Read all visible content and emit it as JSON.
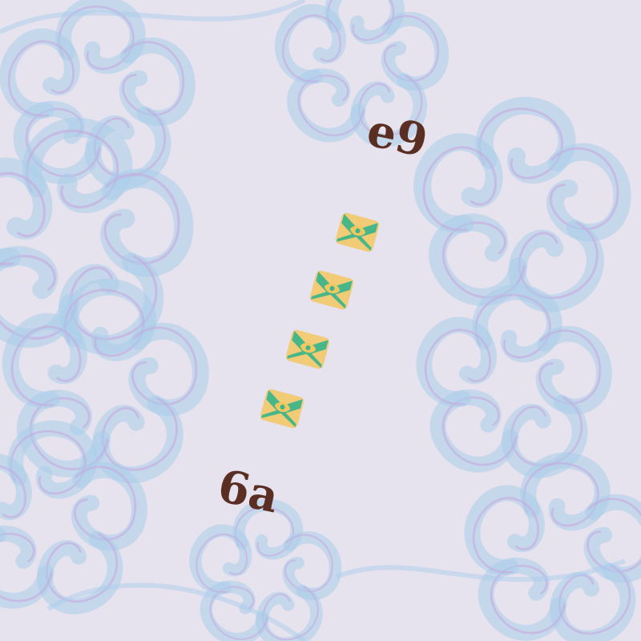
{
  "palette": {
    "background": "#e6e2ee",
    "ribbon_blue": "#a9cdea",
    "ribbon_violet": "#c7a9e0",
    "glyph_brown": "#5a2e22",
    "tile_green": "#3db58b",
    "tile_gold": "#f2c760"
  },
  "motifs": {
    "ribbon_pattern": "curled-ribbon-swirls",
    "top_glyph": "curl-pair-glyph",
    "bottom_glyph": "curl-pair-glyph",
    "tile_glyph": "green-gold-ornament",
    "tile_count": 4
  },
  "glyphs": {
    "top": "e9",
    "bottom": "6a"
  }
}
